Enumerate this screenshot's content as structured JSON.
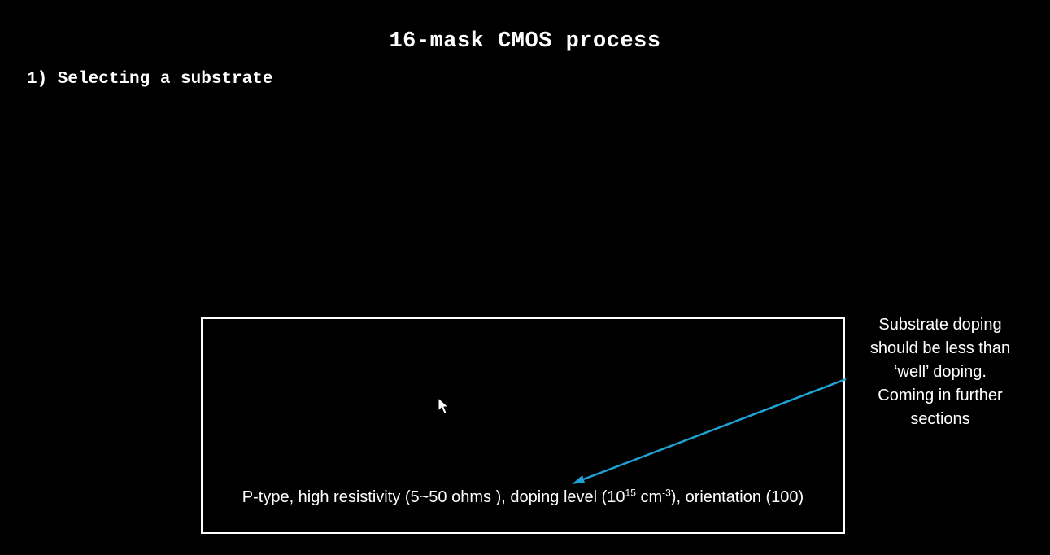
{
  "slide": {
    "title": "16-mask CMOS process",
    "subtitle": "1) Selecting a substrate",
    "spec": {
      "part1": "P-type, high resistivity (5~50 ohms ), doping level (10",
      "sup1": "15",
      "part2": " cm",
      "sup2": "-3",
      "part3": "), orientation (100)"
    },
    "note_lines": [
      "Substrate doping",
      "should be less than",
      "‘well’ doping.",
      "Coming in further",
      "sections"
    ]
  },
  "colors": {
    "background": "#000000",
    "text": "#ffffff",
    "arrow": "#1fa3d6"
  },
  "icons": {
    "pointer": "mouse-pointer-icon",
    "arrow": "callout-arrow"
  }
}
